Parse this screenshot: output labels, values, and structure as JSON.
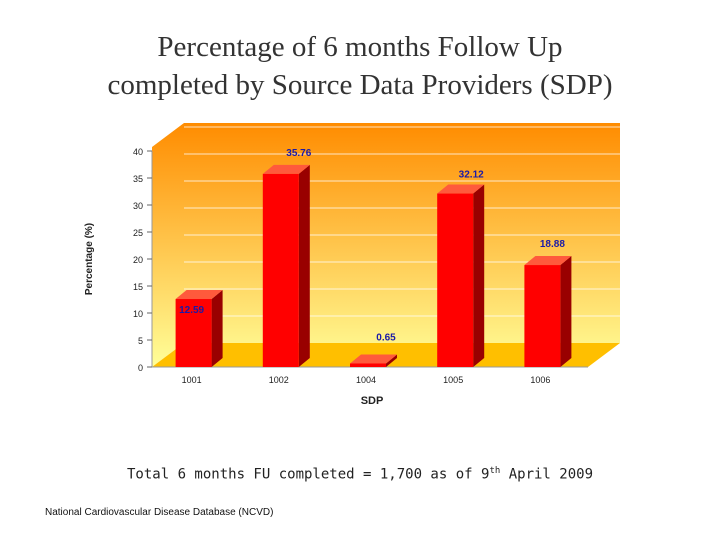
{
  "page": {
    "title_line1": "Percentage of 6 months Follow Up",
    "title_line2": "completed by Source Data Providers (SDP)",
    "footnote_main": "Total 6 months FU completed = 1,700 as of 9",
    "footnote_sup": "th",
    "footnote_tail": " April 2009",
    "source": "National Cardiovascular Disease Database (NCVD)"
  },
  "chart_data": {
    "type": "bar",
    "categories": [
      "1001",
      "1002",
      "1004",
      "1005",
      "1006"
    ],
    "values": [
      12.59,
      35.76,
      0.65,
      32.12,
      18.88
    ],
    "value_labels": [
      "12.59",
      "35.76",
      "0.65",
      "32.12",
      "18.88"
    ],
    "xlabel": "SDP",
    "ylabel": "Percentage (%)",
    "ylim": [
      0,
      40
    ],
    "yticks": [
      0,
      5,
      10,
      15,
      20,
      25,
      30,
      35,
      40
    ],
    "grid": true,
    "colors": {
      "bar_front": "#ff0000",
      "bar_side": "#990000",
      "bar_top": "#ff5a3c",
      "bg_top": "#ff8c00",
      "bg_bottom": "#ffff99",
      "floor": "#ffbf00",
      "value_label": "#1a1aa8"
    }
  }
}
